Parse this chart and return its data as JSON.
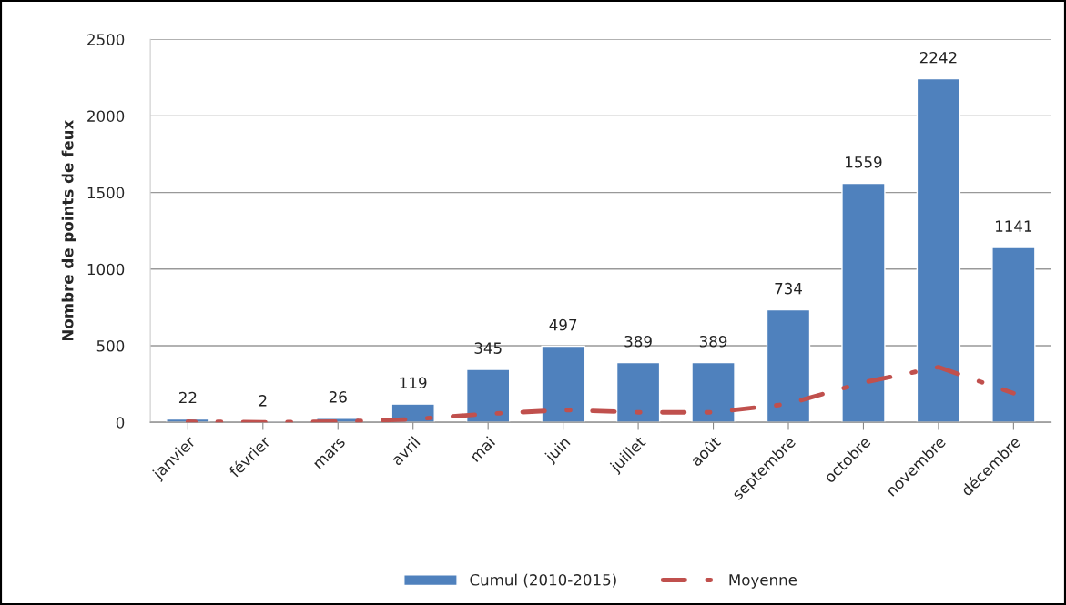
{
  "chart_data": {
    "type": "bar",
    "ylabel": "Nombre de points de feux",
    "categories": [
      "janvier",
      "février",
      "mars",
      "avril",
      "mai",
      "juin",
      "juillet",
      "août",
      "septembre",
      "octobre",
      "novembre",
      "décembre"
    ],
    "series": [
      {
        "name": "Cumul (2010-2015)",
        "color": "#4f81bd",
        "values": [
          22,
          2,
          26,
          119,
          345,
          497,
          389,
          389,
          734,
          1559,
          2242,
          1141
        ],
        "value_labels": [
          "22",
          "2",
          "26",
          "119",
          "345",
          "497",
          "389",
          "389",
          "734",
          "1559",
          "2242",
          "1141"
        ]
      },
      {
        "name": "Moyenne",
        "type": "line",
        "color": "#c0504d",
        "line_style": "dashdot",
        "values": [
          4,
          0,
          4,
          20,
          55,
          80,
          65,
          65,
          120,
          260,
          360,
          190
        ]
      }
    ],
    "ylim": [
      0,
      2500
    ],
    "yticks": [
      0,
      500,
      1000,
      1500,
      2000,
      2500
    ],
    "grid": "y",
    "legend": "bottom"
  }
}
